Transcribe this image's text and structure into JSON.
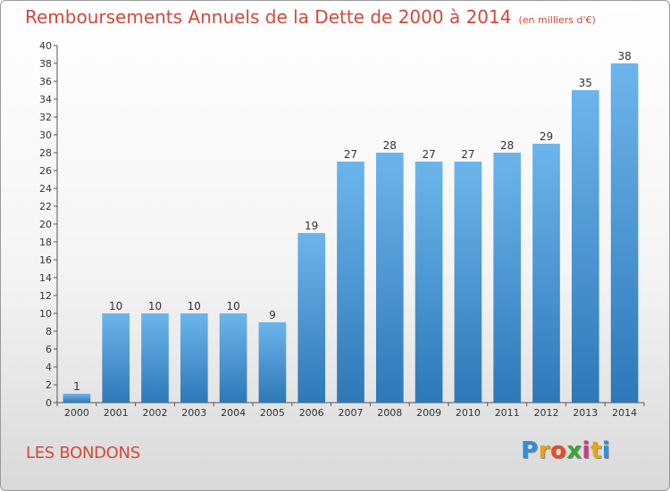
{
  "header": {
    "title": "Remboursements Annuels de la Dette de 2000 à 2014",
    "unit": "(en milliers d'€)"
  },
  "footer": {
    "commune": "LES BONDONS",
    "logo_letters": [
      "P",
      "r",
      "o",
      "x",
      "i",
      "t",
      "i"
    ],
    "logo_colors": [
      "#2e8fd6",
      "#e8a316",
      "#e84b2a",
      "#3aa63a",
      "#d0368a",
      "#e8a316",
      "#2e8fd6"
    ]
  },
  "colors": {
    "bar_top": "#6cb5ec",
    "bar_bottom": "#2e78b8",
    "title": "#d2493a"
  },
  "chart_data": {
    "type": "bar",
    "title": "Remboursements Annuels de la Dette de 2000 à 2014",
    "categories": [
      "2000",
      "2001",
      "2002",
      "2003",
      "2004",
      "2005",
      "2006",
      "2007",
      "2008",
      "2009",
      "2010",
      "2011",
      "2012",
      "2013",
      "2014"
    ],
    "values": [
      1,
      10,
      10,
      10,
      10,
      9,
      19,
      27,
      28,
      27,
      27,
      28,
      29,
      35,
      38
    ],
    "ylim": [
      0,
      40
    ],
    "yticks": [
      0,
      2,
      4,
      6,
      8,
      10,
      12,
      14,
      16,
      18,
      20,
      22,
      24,
      26,
      28,
      30,
      32,
      34,
      36,
      38,
      40
    ],
    "grid": false,
    "legend": "none"
  }
}
